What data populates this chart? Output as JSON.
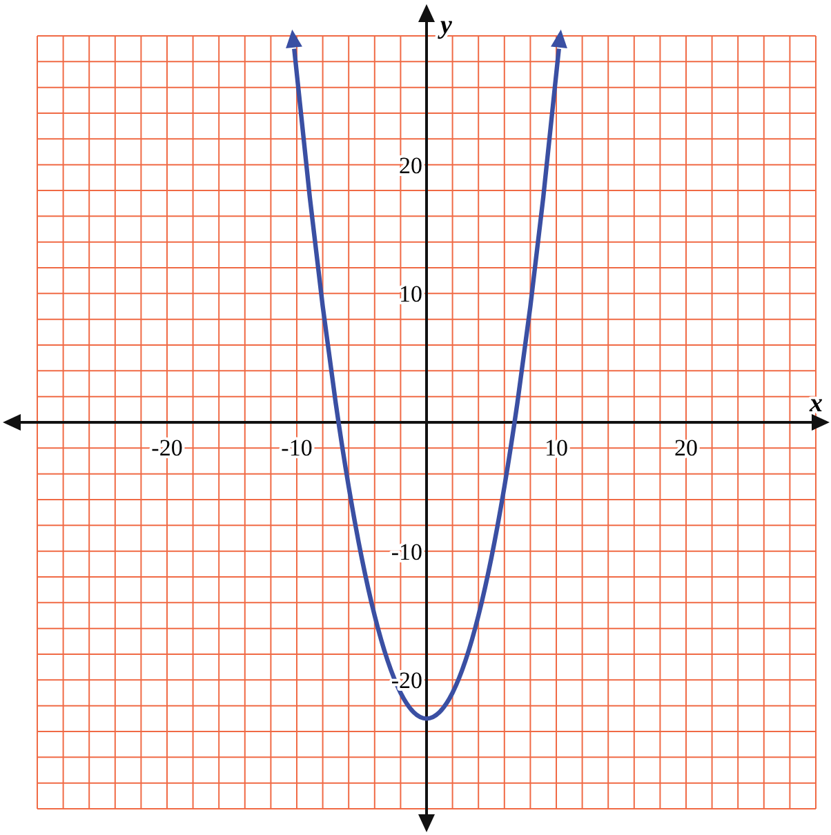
{
  "chart_data": {
    "type": "line",
    "xlabel": "x",
    "ylabel": "y",
    "xlim": [
      -30,
      30
    ],
    "ylim": [
      -30,
      30
    ],
    "xticks": [
      {
        "value": -30,
        "label": null
      },
      {
        "value": -28,
        "label": null
      },
      {
        "value": -26,
        "label": null
      },
      {
        "value": -24,
        "label": null
      },
      {
        "value": -22,
        "label": null
      },
      -20,
      {
        "value": -18,
        "label": null
      },
      {
        "value": -16,
        "label": null
      },
      {
        "value": -14,
        "label": null
      },
      {
        "value": -12,
        "label": null
      },
      -10,
      {
        "value": -8,
        "label": null
      },
      {
        "value": -6,
        "label": null
      },
      {
        "value": -4,
        "label": null
      },
      {
        "value": -2,
        "label": null
      },
      {
        "value": 2,
        "label": null
      },
      {
        "value": 4,
        "label": null
      },
      {
        "value": 6,
        "label": null
      },
      {
        "value": 8,
        "label": null
      },
      10,
      {
        "value": 12,
        "label": null
      },
      {
        "value": 14,
        "label": null
      },
      {
        "value": 16,
        "label": null
      },
      {
        "value": 18,
        "label": null
      },
      20,
      {
        "value": 22,
        "label": null
      },
      {
        "value": 24,
        "label": null
      },
      {
        "value": 26,
        "label": null
      },
      {
        "value": 28,
        "label": null
      },
      {
        "value": 30,
        "label": null
      }
    ],
    "yticks": [
      {
        "value": -30,
        "label": null
      },
      {
        "value": -28,
        "label": null
      },
      {
        "value": -26,
        "label": null
      },
      {
        "value": -24,
        "label": null
      },
      {
        "value": -22,
        "label": null
      },
      -20,
      {
        "value": -18,
        "label": null
      },
      {
        "value": -16,
        "label": null
      },
      {
        "value": -14,
        "label": null
      },
      {
        "value": -12,
        "label": null
      },
      -10,
      {
        "value": -8,
        "label": null
      },
      {
        "value": -6,
        "label": null
      },
      {
        "value": -4,
        "label": null
      },
      {
        "value": -2,
        "label": null
      },
      {
        "value": 2,
        "label": null
      },
      {
        "value": 4,
        "label": null
      },
      {
        "value": 6,
        "label": null
      },
      {
        "value": 8,
        "label": null
      },
      10,
      {
        "value": 12,
        "label": null
      },
      {
        "value": 14,
        "label": null
      },
      {
        "value": 16,
        "label": null
      },
      {
        "value": 18,
        "label": null
      },
      20,
      {
        "value": 22,
        "label": null
      },
      {
        "value": 24,
        "label": null
      },
      {
        "value": 26,
        "label": null
      },
      {
        "value": 28,
        "label": null
      },
      {
        "value": 30,
        "label": null
      }
    ],
    "grid": true,
    "marker": "none",
    "series": [
      {
        "color": "#3a4fa3",
        "x": [
          -10.2,
          -9,
          -8,
          -7,
          -6,
          -5,
          -4,
          -3,
          -2,
          -1,
          0,
          1,
          2,
          3,
          4,
          5,
          6,
          7,
          8,
          9,
          10.2
        ],
        "values": [
          29,
          17.5,
          9,
          1.5,
          -5,
          -10.5,
          -15,
          -18.5,
          -21,
          -22.5,
          -23,
          -22.5,
          -21,
          -18.5,
          -15,
          -10.5,
          -5,
          1.5,
          9,
          17.5,
          29
        ]
      }
    ]
  }
}
